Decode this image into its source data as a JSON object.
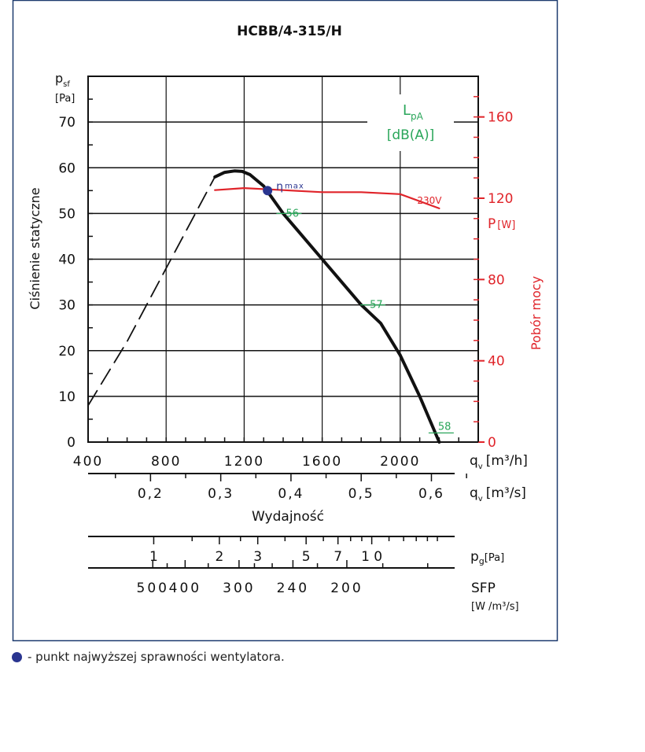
{
  "chart_data": {
    "type": "line",
    "title": "HCBB/4-315/H",
    "ylabel": "Ciśnienie statyczne",
    "y_symbol": "p",
    "y_sub": "sf",
    "y_unit": "[Pa]",
    "y_ticks": [
      "0",
      "10",
      "20",
      "30",
      "40",
      "50",
      "60",
      "70"
    ],
    "ylim": [
      0,
      80
    ],
    "xlim": [
      400,
      2400
    ],
    "x_ticks": [
      "400",
      "800",
      "1200",
      "1600",
      "2000"
    ],
    "x_tick_values": [
      400,
      800,
      1200,
      1600,
      2000
    ],
    "x_symbol": "q",
    "x_sub": "v",
    "x_unit": "[m³/h]",
    "x2_ticks": [
      "0,2",
      "0,3",
      "0,4",
      "0,5",
      "0,6"
    ],
    "x2_tick_values": [
      0.2,
      0.3,
      0.4,
      0.5,
      0.6
    ],
    "x2_unit": "[m³/s]",
    "xlabel": "Wydajność",
    "right_label": "Pobór mocy",
    "right_symbol": "P",
    "right_unit": "[W]",
    "right_ticks": [
      "0",
      "40",
      "80",
      "120",
      "160"
    ],
    "right_tick_values": [
      0,
      40,
      80,
      120,
      160
    ],
    "right_lim": [
      0,
      180
    ],
    "lpa_label": "L",
    "lpa_sub": "pA",
    "lpa_unit": "[dB(A)]",
    "pd_symbol": "p",
    "pd_sub": "g",
    "pd_unit": "[Pa]",
    "pd_ticks": [
      "1",
      "2",
      "3",
      "5",
      "7",
      "1 0"
    ],
    "pd_tick_values": [
      1,
      2,
      3,
      5,
      7,
      10
    ],
    "sfp_label": "SFP",
    "sfp_unit": "[W /m³/s]",
    "sfp_ticks": [
      "500",
      "400",
      "300",
      "240",
      "200"
    ],
    "sfp_tick_values": [
      500,
      400,
      300,
      240,
      200
    ],
    "series": [
      {
        "name": "",
        "style": "dashed",
        "x": [
          400,
          500,
          600,
          700,
          800,
          900,
          1000,
          1050
        ],
        "y": [
          8,
          15,
          22,
          30,
          38,
          46,
          54,
          58
        ]
      },
      {
        "name": "",
        "style": "solid",
        "x": [
          1050,
          1100,
          1150,
          1190,
          1230,
          1300,
          1400,
          1500,
          1600,
          1700,
          1800,
          1900,
          2000,
          2100,
          2200
        ],
        "y": [
          58,
          59,
          59.3,
          59.2,
          58.5,
          56,
          50,
          45,
          40,
          35,
          30,
          26,
          19,
          10,
          0
        ]
      },
      {
        "name": "230V",
        "axis": "right",
        "x": [
          1050,
          1200,
          1400,
          1600,
          1800,
          2000,
          2200
        ],
        "y": [
          124,
          125,
          124,
          123,
          123,
          122,
          115
        ]
      }
    ],
    "eta_max": {
      "label": "η",
      "sub": "max",
      "x": 1320,
      "y": 55
    },
    "lpa_points": [
      {
        "label": "56",
        "x": 1430,
        "y": 50
      },
      {
        "label": "57",
        "x": 1860,
        "y": 30
      },
      {
        "label": "58",
        "x": 2210,
        "y": 2
      }
    ],
    "colors": {
      "curve": "#111111",
      "power": "#e0242a",
      "lpa": "#2aa65a",
      "eta": "#2a3590",
      "frame": "#1c3a6e"
    }
  },
  "footnote": "- punkt najwyższej sprawności wentylatora."
}
